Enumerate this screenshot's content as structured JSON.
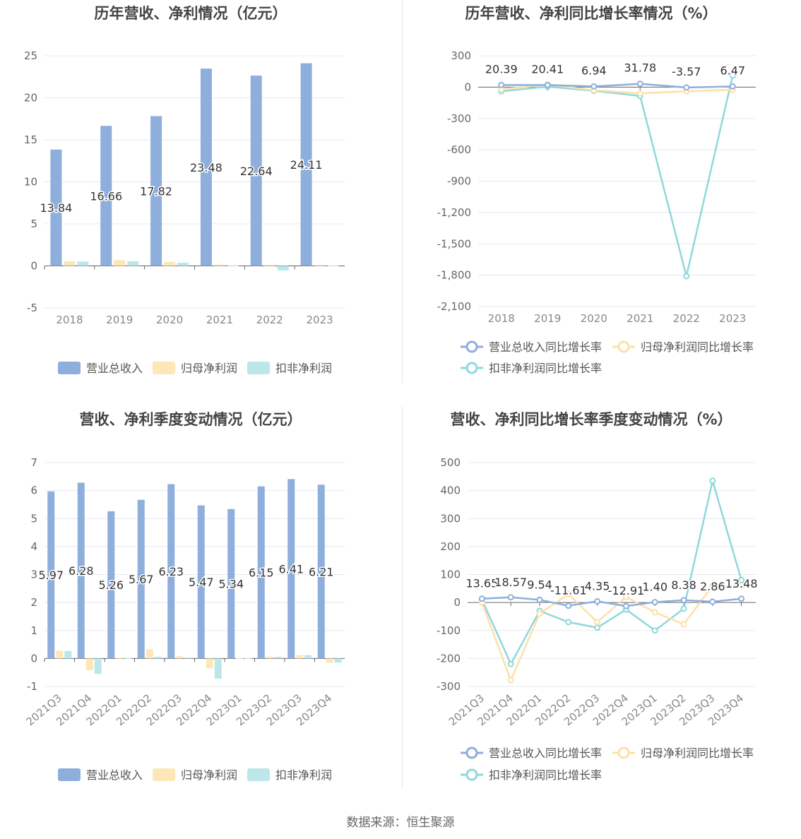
{
  "source": "数据来源：恒生聚源",
  "colors": {
    "revenue": "#8eaedc",
    "netprofit": "#fde6b8",
    "deducted": "#bce7e9",
    "revenue_line": "#8eaedc",
    "netprofit_line": "#fde0a8",
    "deducted_line": "#8fd8dc"
  },
  "chart_data": [
    {
      "type": "bar",
      "title": "历年营收、净利情况（亿元）",
      "categories": [
        "2018",
        "2019",
        "2020",
        "2021",
        "2022",
        "2023"
      ],
      "yticks": [
        "25",
        "20",
        "15",
        "10",
        "5",
        "0",
        "-5"
      ],
      "ylim": [
        -5,
        25
      ],
      "series": [
        {
          "name": "营业总收入",
          "values": [
            13.84,
            16.66,
            17.82,
            23.48,
            22.64,
            24.11
          ]
        },
        {
          "name": "归母净利润",
          "values": [
            0.55,
            0.68,
            0.48,
            0.15,
            0.1,
            0.1
          ]
        },
        {
          "name": "扣非净利润",
          "values": [
            0.52,
            0.55,
            0.38,
            0.05,
            -0.55,
            0.05
          ]
        }
      ],
      "data_labels": [
        "13.84",
        "16.66",
        "17.82",
        "23.48",
        "22.64",
        "24.11"
      ],
      "legend": "bottom"
    },
    {
      "type": "line",
      "title": "历年营收、净利同比增长率情况（%）",
      "categories": [
        "2018",
        "2019",
        "2020",
        "2021",
        "2022",
        "2023"
      ],
      "yticks": [
        "300",
        "0",
        "-300",
        "-600",
        "-900",
        "-1,200",
        "-1,500",
        "-1,800",
        "-2,100"
      ],
      "ylim": [
        -2100,
        300
      ],
      "series": [
        {
          "name": "营业总收入同比增长率",
          "values": [
            20.39,
            20.41,
            6.94,
            31.78,
            -3.57,
            6.47
          ]
        },
        {
          "name": "归母净利润同比增长率",
          "values": [
            -20,
            25,
            -30,
            -60,
            -40,
            -25
          ]
        },
        {
          "name": "扣非净利润同比增长率",
          "values": [
            -40,
            5,
            -35,
            -85,
            -1810,
            110
          ]
        }
      ],
      "data_labels": [
        "20.39",
        "20.41",
        "6.94",
        "31.78",
        "-3.57",
        "6.47"
      ],
      "legend": "bottom"
    },
    {
      "type": "bar",
      "title": "营收、净利季度变动情况（亿元）",
      "categories": [
        "2021Q3",
        "2021Q4",
        "2022Q1",
        "2022Q2",
        "2022Q3",
        "2022Q4",
        "2023Q1",
        "2023Q2",
        "2023Q3",
        "2023Q4"
      ],
      "yticks": [
        "7",
        "6",
        "5",
        "4",
        "3",
        "2",
        "1",
        "0",
        "-1"
      ],
      "ylim": [
        -1,
        7
      ],
      "series": [
        {
          "name": "营业总收入",
          "values": [
            5.97,
            6.28,
            5.26,
            5.67,
            6.23,
            5.47,
            5.34,
            6.15,
            6.41,
            6.21
          ]
        },
        {
          "name": "归母净利润",
          "values": [
            0.28,
            -0.42,
            0.02,
            0.33,
            0.08,
            -0.35,
            0.01,
            0.07,
            0.12,
            -0.15
          ]
        },
        {
          "name": "扣非净利润",
          "values": [
            0.27,
            -0.55,
            0.01,
            0.06,
            0.03,
            -0.72,
            0.01,
            0.06,
            0.12,
            -0.15
          ]
        }
      ],
      "data_labels": [
        "5.97",
        "6.28",
        "5.26",
        "5.67",
        "6.23",
        "5.47",
        "5.34",
        "6.15",
        "6.41",
        "6.21"
      ],
      "legend": "bottom"
    },
    {
      "type": "line",
      "title": "营收、净利同比增长率季度变动情况（%）",
      "categories": [
        "2021Q3",
        "2021Q4",
        "2022Q1",
        "2022Q2",
        "2022Q3",
        "2022Q4",
        "2023Q1",
        "2023Q2",
        "2023Q3",
        "2023Q4"
      ],
      "yticks": [
        "500",
        "400",
        "300",
        "200",
        "100",
        "0",
        "-100",
        "-200",
        "-300"
      ],
      "ylim": [
        -300,
        500
      ],
      "series": [
        {
          "name": "营业总收入同比增长率",
          "values": [
            13.65,
            18.57,
            9.54,
            -11.61,
            4.35,
            -12.91,
            1.4,
            8.38,
            2.86,
            13.48
          ]
        },
        {
          "name": "归母净利润同比增长率",
          "values": [
            0,
            -278,
            -40,
            30,
            -70,
            20,
            -35,
            -78,
            60,
            60
          ]
        },
        {
          "name": "扣非净利润同比增长率",
          "values": [
            10,
            -220,
            -30,
            -70,
            -90,
            -25,
            -100,
            -22,
            435,
            80
          ]
        }
      ],
      "data_labels": [
        "13.65",
        "18.57",
        "9.54",
        "-11.61",
        "4.35",
        "-12.91",
        "1.40",
        "8.38",
        "2.86",
        "13.48"
      ],
      "legend": "bottom"
    }
  ]
}
